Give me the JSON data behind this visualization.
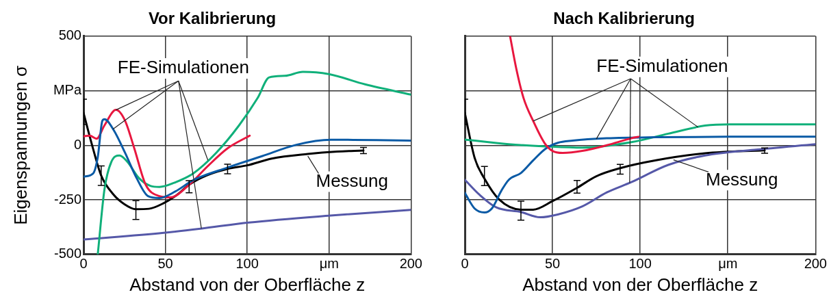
{
  "chart_data": [
    {
      "type": "line",
      "title": "Vor Kalibrierung",
      "xlabel": "Abstand von der Oberfläche z",
      "ylabel": "Eigenspannungen σ",
      "xlim": [
        0,
        200
      ],
      "xticks": [
        0,
        50,
        100,
        {
          "value": 150,
          "label": "μm"
        },
        200
      ],
      "ylim": [
        -500,
        500
      ],
      "yticks": [
        -500,
        -250,
        0,
        {
          "value": 250,
          "label": "MPa"
        },
        500
      ],
      "grid": true,
      "legend": false,
      "annotations": [
        {
          "text": "FE-Simulationen",
          "x": 19.8,
          "y": 162
        }
      ],
      "series": [
        {
          "color": "#0a5aa5",
          "x": [
            0,
            5.9,
            8.7,
            11.5,
            12.8,
            18.4,
            25.4,
            32.4,
            39.4,
            46.4,
            56,
            67,
            88,
            109,
            130,
            151,
            179,
            200
          ],
          "values": [
            -144,
            -129,
            -55,
            112,
            119,
            70,
            -35,
            -150,
            -233,
            -242,
            -212,
            -160,
            -102,
            -50,
            2,
            25,
            24,
            21
          ]
        },
        {
          "color": "#e8173f",
          "x": [
            0,
            3.8,
            8,
            12.8,
            19.8,
            25.4,
            31,
            38,
            46.4,
            53,
            64.5,
            75.7,
            88,
            101.5
          ],
          "values": [
            41,
            44,
            30,
            91,
            162,
            112,
            -14,
            -181,
            -233,
            -239,
            -181,
            -97,
            -14,
            44
          ]
        },
        {
          "color": "#10b07a",
          "x": [
            8.7,
            12.8,
            17,
            22,
            26.8,
            33.8,
            40.8,
            46.4,
            56,
            67,
            81,
            95,
            106.4,
            113.4,
            123,
            134,
            149.7,
            172,
            200
          ],
          "values": [
            -500,
            -202,
            -76,
            -47,
            -76,
            -150,
            -186,
            -191,
            -170,
            -129,
            -35,
            91,
            217,
            311,
            318,
            336,
            326,
            279,
            232
          ]
        },
        {
          "color": "#5558a8",
          "x": [
            0,
            49,
            71.5,
            101,
            151,
            200
          ],
          "values": [
            -432,
            -401,
            -382,
            -354,
            -322,
            -296
          ]
        },
        {
          "name": "Messung",
          "color": "#000000",
          "x": [
            0,
            5,
            10.8,
            18,
            25,
            32,
            40,
            49,
            57,
            64.5,
            75,
            88,
            100,
            115,
            137,
            155,
            171
          ],
          "values": [
            149,
            7,
            -139,
            -223,
            -270,
            -293,
            -291,
            -265,
            -228,
            -181,
            -139,
            -108,
            -92,
            -61,
            -40,
            -29,
            -24
          ],
          "errors": [
            [
              96,
              211
            ],
            null,
            [
              -184,
              -95
            ],
            null,
            null,
            [
              -340,
              -254
            ],
            null,
            null,
            null,
            [
              -218,
              -162
            ],
            null,
            [
              -131,
              -87
            ],
            null,
            null,
            null,
            null,
            [
              -38,
              -10
            ]
          ]
        }
      ]
    },
    {
      "type": "line",
      "title": "Nach Kalibrierung",
      "xlabel": "Abstand von der Oberfläche z",
      "xlim": [
        0,
        200
      ],
      "xticks": [
        0,
        50,
        100,
        {
          "value": 150,
          "label": "μm"
        },
        200
      ],
      "ylim": [
        -500,
        500
      ],
      "yticks": [
        -500,
        -250,
        0,
        250,
        500
      ],
      "tick_labels": "x",
      "grid": true,
      "legend": false,
      "annotations": [
        {
          "text": "FE-Simulationen",
          "x": 39,
          "y": 111
        }
      ],
      "series": [
        {
          "color": "#e8173f",
          "x": [
            25.8,
            29.3,
            33.5,
            39,
            45.4,
            50,
            55.8,
            67,
            81,
            95,
            99
          ],
          "values": [
            500,
            353,
            216,
            111,
            11,
            -26,
            -35,
            -26,
            0,
            32,
            39
          ]
        },
        {
          "color": "#0a5aa5",
          "x": [
            0,
            5.6,
            11.2,
            15.4,
            21,
            25.1,
            32,
            39,
            46,
            53,
            61.4,
            81,
            109,
            150.7,
            200
          ],
          "values": [
            -218,
            -290,
            -308,
            -290,
            -206,
            -158,
            -127,
            -69,
            -16,
            11,
            21,
            32,
            37,
            39,
            39
          ]
        },
        {
          "color": "#10b07a",
          "x": [
            0,
            25,
            46,
            67,
            95,
            116,
            137,
            151,
            200
          ],
          "values": [
            26,
            5,
            -5,
            -11,
            14,
            53,
            90,
            96,
            96
          ]
        },
        {
          "color": "#5558a8",
          "x": [
            0,
            8.4,
            18,
            32,
            43,
            53,
            67,
            81,
            95,
            116,
            137,
            165,
            200
          ],
          "values": [
            -158,
            -227,
            -285,
            -306,
            -330,
            -317,
            -280,
            -216,
            -169,
            -90,
            -47,
            -21,
            5
          ]
        },
        {
          "name": "Messung",
          "color": "#000000",
          "x": [
            0,
            5.6,
            11.2,
            19.5,
            32,
            39,
            50,
            64,
            75,
            88.6,
            109,
            137,
            171
          ],
          "values": [
            148,
            -58,
            -153,
            -248,
            -295,
            -295,
            -256,
            -195,
            -142,
            -105,
            -69,
            -37,
            -23
          ],
          "errors": [
            [
              96,
              211
            ],
            null,
            [
              -185,
              -97
            ],
            null,
            [
              -343,
              -256
            ],
            null,
            null,
            [
              -219,
              -161
            ],
            null,
            [
              -132,
              -88
            ],
            null,
            null,
            [
              -37,
              -12
            ]
          ]
        }
      ]
    }
  ]
}
